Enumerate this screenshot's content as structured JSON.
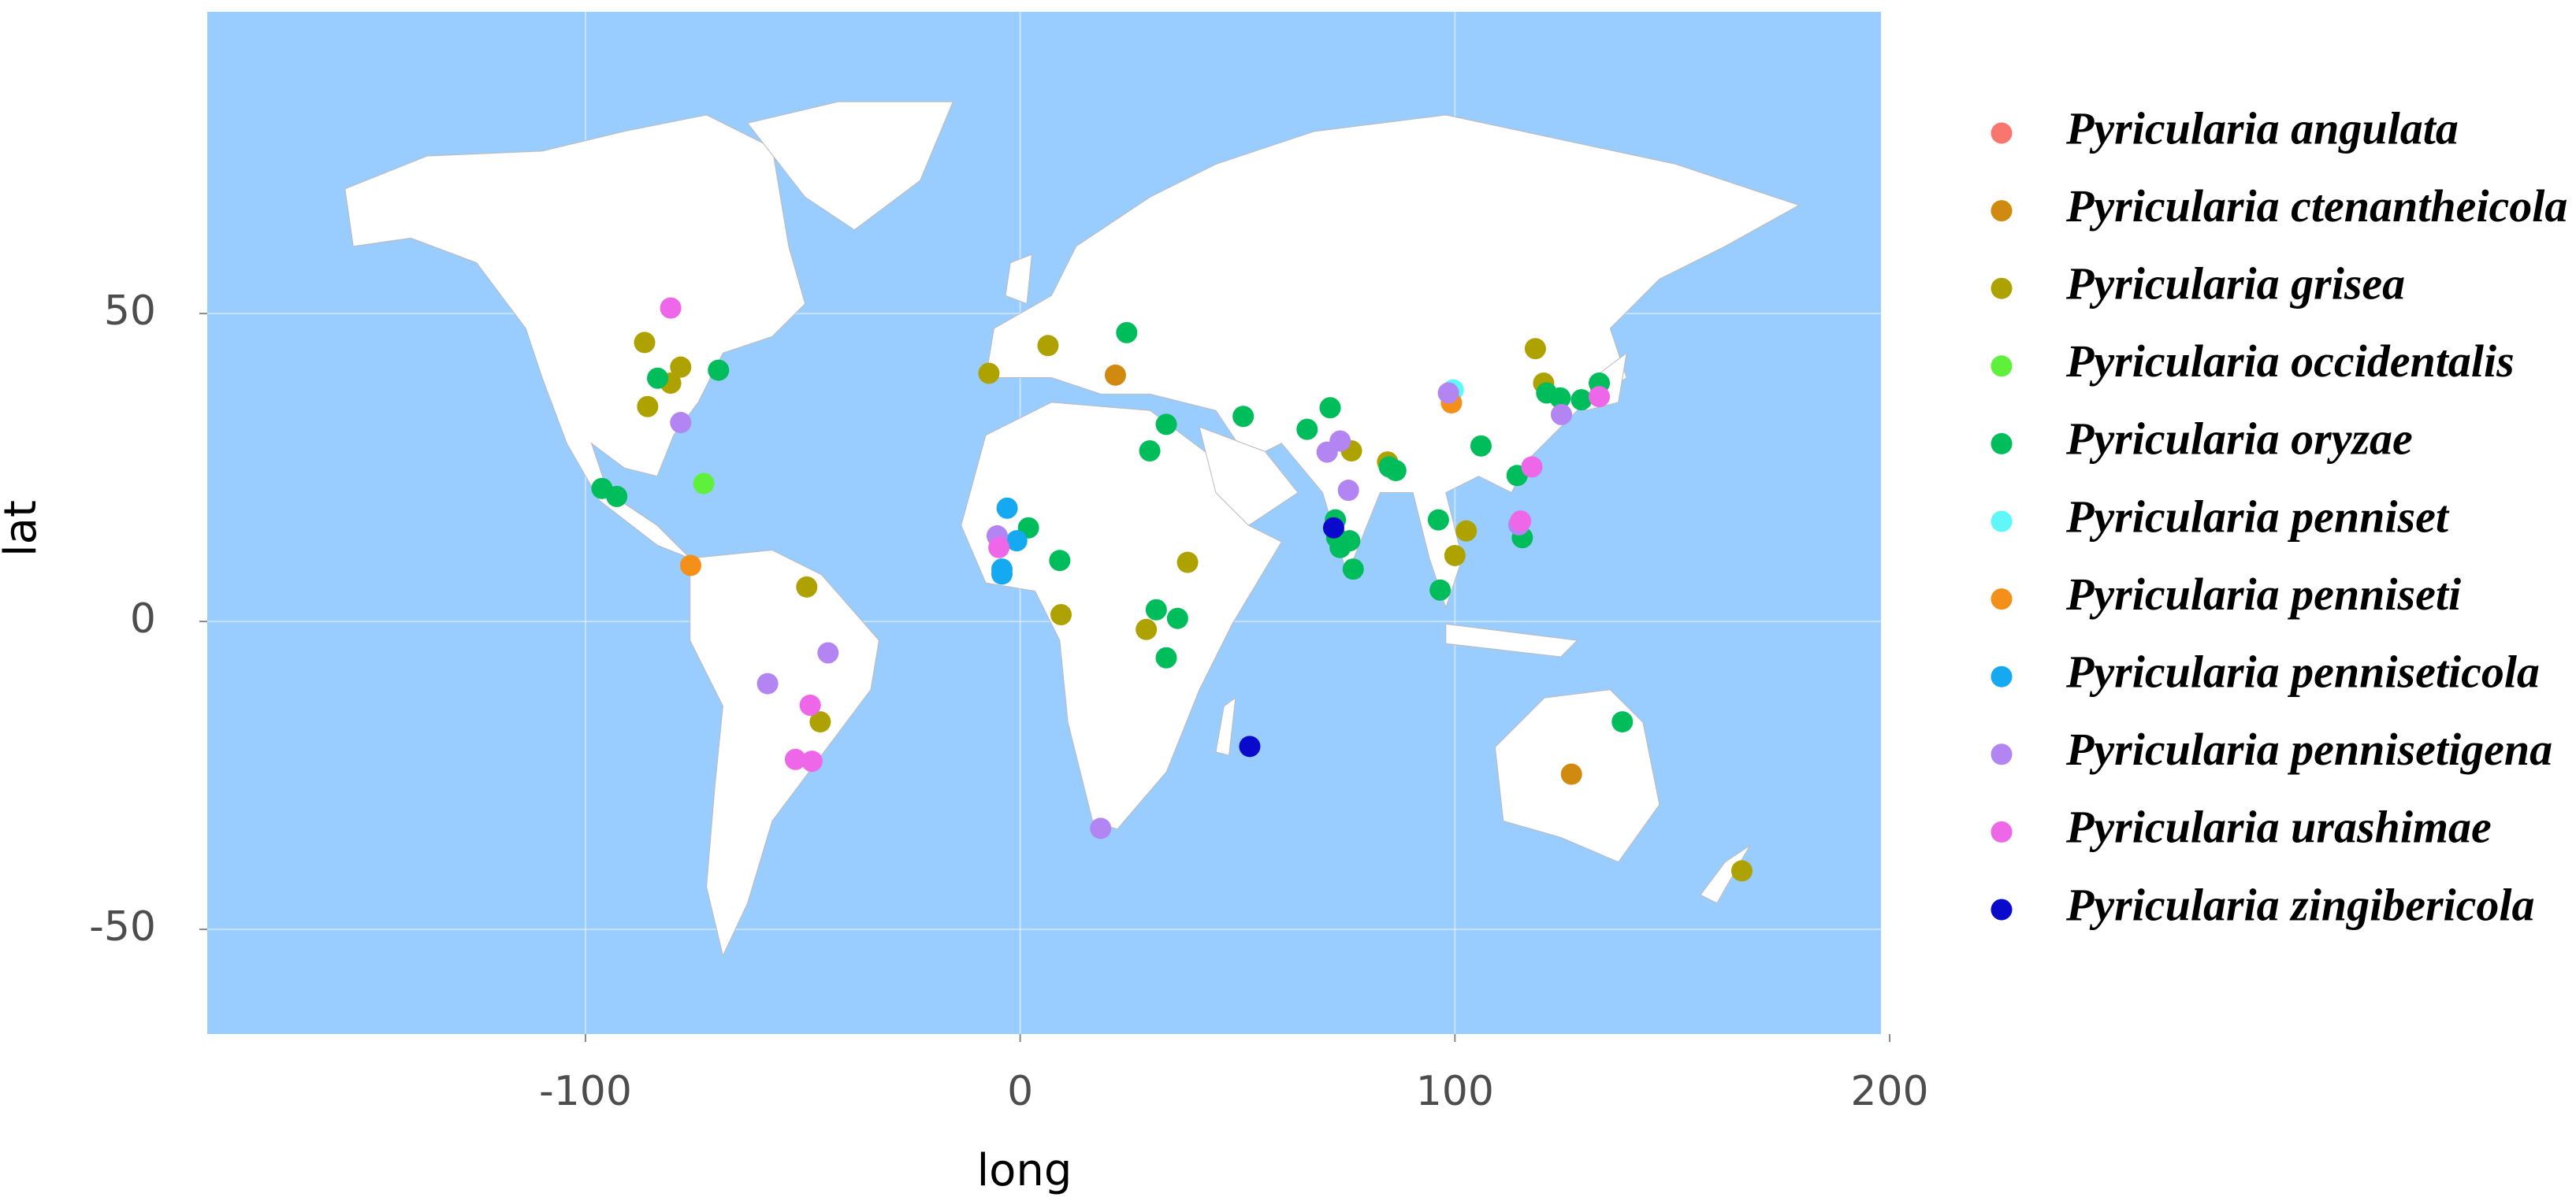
{
  "chart_data": {
    "type": "scatter",
    "x_label": "long",
    "y_label": "lat",
    "xlim": [
      -187,
      198
    ],
    "ylim": [
      -67,
      99
    ],
    "xticks": [
      -100,
      0,
      100,
      200
    ],
    "yticks": [
      -50,
      0,
      50
    ],
    "grid": true,
    "legend": "right",
    "series": [
      {
        "name": "Pyricularia angulata",
        "color": "#F8766D",
        "x": [],
        "values": []
      },
      {
        "name": "Pyricularia ctenantheicola",
        "color": "#D08A10",
        "x": [
          126.8,
          21.9
        ],
        "values": [
          -24.8,
          40
        ]
      },
      {
        "name": "Pyricularia grisea",
        "color": "#AEA200",
        "x": [
          -86.4,
          -85.7,
          -80.4,
          -78.1,
          -49.1,
          -46,
          -7.2,
          6.4,
          9.4,
          29,
          38.5,
          76.2,
          84.5,
          100,
          102.6,
          118.5,
          120.4,
          166
        ],
        "values": [
          45.3,
          34.9,
          38.7,
          41.3,
          5.6,
          -16.3,
          40.3,
          44.8,
          1.1,
          -1.3,
          9.6,
          27.7,
          25.9,
          10.7,
          14.7,
          44.3,
          38.7,
          -40.5
        ]
      },
      {
        "name": "Pyricularia occidentalis",
        "color": "#5EF03A",
        "x": [
          -72.8
        ],
        "values": [
          22.4
        ]
      },
      {
        "name": "Pyricularia oryzae",
        "color": "#00BD5C",
        "x": [
          -96.2,
          -92.8,
          -83.4,
          -69.4,
          24.5,
          33.6,
          29.8,
          1.9,
          9.1,
          31.3,
          36.2,
          33.6,
          51.3,
          66,
          71.3,
          72.5,
          72.8,
          73.6,
          75.8,
          76.6,
          84.9,
          86.4,
          96.2,
          96.6,
          106,
          114.3,
          115.5,
          121.1,
          124.2,
          129.1,
          133.2,
          138.5
        ],
        "values": [
          21.6,
          20.3,
          39.5,
          40.8,
          46.9,
          32,
          27.7,
          15.2,
          9.9,
          1.9,
          0.5,
          -5.9,
          33.3,
          31.2,
          34.7,
          16.5,
          13.6,
          12,
          13.1,
          8.5,
          25.1,
          24.5,
          16.5,
          5.1,
          28.5,
          23.7,
          13.6,
          37.1,
          36.3,
          36,
          38.7,
          -16.3
        ]
      },
      {
        "name": "Pyricularia penniset",
        "color": "#5FF7F7",
        "x": [
          99.6
        ],
        "values": [
          37.6
        ]
      },
      {
        "name": "Pyricularia penniseti",
        "color": "#F4901A",
        "x": [
          -75.8,
          99.2
        ],
        "values": [
          9.1,
          35.5
        ]
      },
      {
        "name": "Pyricularia penniseticola",
        "color": "#14A9F0",
        "x": [
          -3,
          -0.8,
          -4.2,
          -4.2
        ],
        "values": [
          18.4,
          13.1,
          8.5,
          7.7
        ]
      },
      {
        "name": "Pyricularia pennisetigena",
        "color": "#B385F2",
        "x": [
          -78.1,
          -58.1,
          -44.2,
          -5.3,
          18.5,
          70.6,
          73.6,
          75.5,
          98.5,
          114.7,
          124.5
        ],
        "values": [
          32.3,
          -10.1,
          -5.1,
          13.9,
          -33.6,
          27.5,
          29.3,
          21.3,
          37.1,
          15.7,
          33.6
        ]
      },
      {
        "name": "Pyricularia urashimae",
        "color": "#EE67E8",
        "x": [
          -80.4,
          -4.9,
          -51.7,
          -47.9,
          -48.3,
          117.7,
          133.2,
          115.1
        ],
        "values": [
          50.9,
          12,
          -22.4,
          -22.7,
          -13.6,
          25.1,
          36.5,
          16.3
        ]
      },
      {
        "name": "Pyricularia zingibericola",
        "color": "#0A0ACC",
        "x": [
          72.1,
          52.8
        ],
        "values": [
          15.2,
          -20.3
        ]
      }
    ]
  }
}
